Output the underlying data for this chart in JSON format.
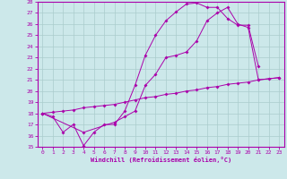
{
  "xlabel": "Windchill (Refroidissement éolien,°C)",
  "bg_color": "#cce8ea",
  "line_color": "#aa00aa",
  "grid_color": "#aacccc",
  "xlim": [
    -0.5,
    23.5
  ],
  "ylim": [
    15,
    28
  ],
  "xticks": [
    0,
    1,
    2,
    3,
    4,
    5,
    6,
    7,
    8,
    9,
    10,
    11,
    12,
    13,
    14,
    15,
    16,
    17,
    18,
    19,
    20,
    21,
    22,
    23
  ],
  "yticks": [
    15,
    16,
    17,
    18,
    19,
    20,
    21,
    22,
    23,
    24,
    25,
    26,
    27,
    28
  ],
  "line1_x": [
    0,
    1,
    2,
    3,
    4,
    5,
    6,
    7,
    8,
    9,
    10,
    11,
    12,
    13,
    14,
    15,
    16,
    17,
    18,
    19,
    20,
    21
  ],
  "line1_y": [
    18.0,
    17.7,
    16.3,
    17.0,
    15.1,
    16.3,
    17.0,
    17.0,
    18.2,
    20.5,
    23.2,
    25.0,
    26.3,
    27.1,
    27.8,
    27.9,
    27.5,
    27.5,
    26.5,
    25.9,
    25.9,
    22.2
  ],
  "line2_x": [
    0,
    1,
    2,
    3,
    4,
    5,
    6,
    7,
    8,
    9,
    10,
    11,
    12,
    13,
    14,
    15,
    16,
    17,
    18,
    19,
    20,
    21,
    22,
    23
  ],
  "line2_y": [
    18.0,
    18.1,
    18.2,
    18.3,
    18.5,
    18.6,
    18.7,
    18.8,
    19.0,
    19.2,
    19.4,
    19.5,
    19.7,
    19.8,
    20.0,
    20.1,
    20.3,
    20.4,
    20.6,
    20.7,
    20.8,
    21.0,
    21.1,
    21.2
  ],
  "line3_x": [
    0,
    4,
    7,
    8,
    9,
    10,
    11,
    12,
    13,
    14,
    15,
    16,
    17,
    18,
    19,
    20,
    21,
    23
  ],
  "line3_y": [
    18.0,
    16.3,
    17.2,
    17.7,
    18.2,
    20.5,
    21.5,
    23.0,
    23.2,
    23.5,
    24.5,
    26.3,
    27.0,
    27.5,
    26.0,
    25.7,
    21.0,
    21.2
  ]
}
